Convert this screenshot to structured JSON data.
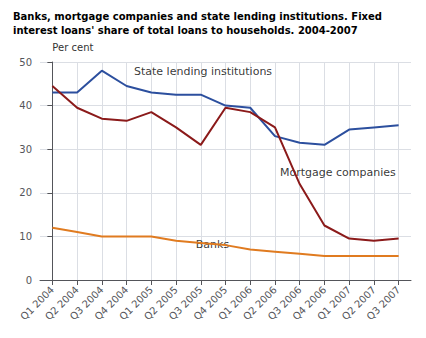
{
  "chart_data": {
    "type": "line",
    "title": "Banks, mortgage companies and state lending institutions. Fixed\ninterest loans' share of total loans to households. 2004-2007",
    "ylabel": "Per cent",
    "categories": [
      "Q1 2004",
      "Q2 2004",
      "Q3 2004",
      "Q4 2004",
      "Q1 2005",
      "Q2 2005",
      "Q3 2005",
      "Q4 2005",
      "Q1 2006",
      "Q2 2006",
      "Q3 2006",
      "Q4 2006",
      "Q1 2007",
      "Q2 2007",
      "Q3 2007"
    ],
    "series": [
      {
        "name": "State lending institutions",
        "color": "#2c4f9e",
        "values": [
          43.0,
          43.0,
          48.0,
          44.5,
          43.0,
          42.5,
          42.5,
          40.0,
          39.5,
          33.0,
          31.5,
          31.0,
          34.5,
          35.0,
          35.5
        ]
      },
      {
        "name": "Mortgage companies",
        "color": "#8b1a1a",
        "values": [
          44.5,
          39.5,
          37.0,
          36.5,
          38.5,
          35.0,
          31.0,
          39.5,
          38.5,
          35.0,
          22.0,
          12.5,
          9.5,
          9.0,
          9.5
        ]
      },
      {
        "name": "Banks",
        "color": "#e07b20",
        "values": [
          12.0,
          11.0,
          10.0,
          10.0,
          10.0,
          9.0,
          8.5,
          8.0,
          7.0,
          6.5,
          6.0,
          5.5,
          5.5,
          5.5,
          5.5
        ]
      }
    ],
    "annotations": [
      {
        "text": "State lending institutions",
        "x": 3.3,
        "y": 46.5
      },
      {
        "text": "Mortgage companies",
        "x": 9.2,
        "y": 23.5
      },
      {
        "text": "Banks",
        "x": 5.8,
        "y": 6.8
      }
    ],
    "ylim": [
      0,
      50
    ],
    "yticks": [
      0,
      10,
      20,
      30,
      40,
      50
    ],
    "grid": true
  }
}
